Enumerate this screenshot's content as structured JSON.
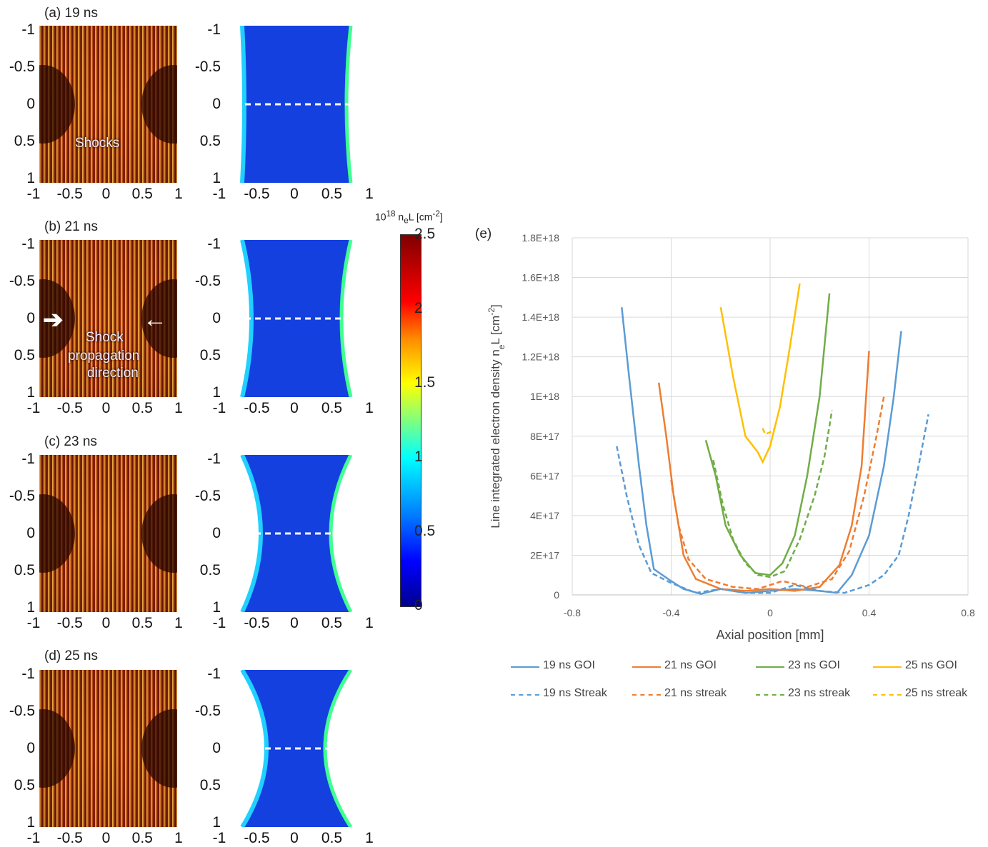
{
  "panels": [
    {
      "label": "(a) 19 ns"
    },
    {
      "label": "(b) 21 ns"
    },
    {
      "label": "(c) 23 ns"
    },
    {
      "label": "(d) 25 ns"
    }
  ],
  "annotations": {
    "shocks": "Shocks",
    "shock_dir_1": "Shock",
    "shock_dir_2": "propagation",
    "shock_dir_3": "direction"
  },
  "image_ticks": {
    "x": [
      "-1",
      "-0.5",
      "0",
      "0.5",
      "1"
    ],
    "y": [
      "-1",
      "-0.5",
      "0",
      "0.5",
      "1"
    ]
  },
  "colorbar": {
    "title": "10<sup>18</sup> n<sub>e</sub>L [cm<sup>-2</sup>]",
    "ticks": [
      "2.5",
      "2",
      "1.5",
      "1",
      "0.5",
      "0"
    ],
    "colors": [
      "#7f0000",
      "#ff0000",
      "#ffff00",
      "#00ffff",
      "#0000ff",
      "#00008f"
    ]
  },
  "panel_e_label": "(e)",
  "chart_data": {
    "type": "line",
    "xlabel": "Axial position [mm]",
    "ylabel": "Line integrated electron density n_eL [cm^-2]",
    "xlim": [
      -0.8,
      0.8
    ],
    "ylim": [
      0,
      1.8e+18
    ],
    "x_ticks": [
      "-0.8",
      "-0.4",
      "0",
      "0.4",
      "0.8"
    ],
    "x_tick_values": [
      -0.8,
      -0.4,
      0,
      0.4,
      0.8
    ],
    "y_ticks": [
      "0",
      "2E+17",
      "4E+17",
      "6E+17",
      "8E+17",
      "1E+18",
      "1.2E+18",
      "1.4E+18",
      "1.6E+18",
      "1.8E+18"
    ],
    "y_tick_values": [
      0,
      2e+17,
      4e+17,
      6e+17,
      8e+17,
      1e+18,
      1.2e+18,
      1.4e+18,
      1.6e+18,
      1.8e+18
    ],
    "grid": true,
    "legend_position": "bottom",
    "series": [
      {
        "name": "19 ns GOI",
        "color": "#5b9bd5",
        "dash": false,
        "points": [
          [
            -0.6,
            1.45e+18
          ],
          [
            -0.57,
            1.1e+18
          ],
          [
            -0.53,
            6.5e+17
          ],
          [
            -0.5,
            3.5e+17
          ],
          [
            -0.47,
            1.3e+17
          ],
          [
            -0.4,
            7e+16
          ],
          [
            -0.35,
            3e+16
          ],
          [
            -0.28,
            5000000000000000.0
          ],
          [
            -0.2,
            3e+16
          ],
          [
            -0.1,
            1e+16
          ],
          [
            0,
            2e+16
          ],
          [
            0.1,
            3e+16
          ],
          [
            0.2,
            2e+16
          ],
          [
            0.27,
            1e+16
          ],
          [
            0.33,
            1e+17
          ],
          [
            0.4,
            3e+17
          ],
          [
            0.46,
            6.5e+17
          ],
          [
            0.5,
            1e+18
          ],
          [
            0.53,
            1.33e+18
          ]
        ]
      },
      {
        "name": "21 ns GOI",
        "color": "#ed7d31",
        "dash": false,
        "points": [
          [
            -0.45,
            1.07e+18
          ],
          [
            -0.42,
            8e+17
          ],
          [
            -0.39,
            5e+17
          ],
          [
            -0.35,
            2e+17
          ],
          [
            -0.3,
            8e+16
          ],
          [
            -0.2,
            3e+16
          ],
          [
            -0.1,
            2e+16
          ],
          [
            0,
            3e+16
          ],
          [
            0.1,
            2e+16
          ],
          [
            0.2,
            4e+16
          ],
          [
            0.28,
            1.5e+17
          ],
          [
            0.33,
            3.5e+17
          ],
          [
            0.37,
            6.5e+17
          ],
          [
            0.4,
            1.23e+18
          ]
        ]
      },
      {
        "name": "23 ns GOI",
        "color": "#70ad47",
        "dash": false,
        "points": [
          [
            -0.26,
            7.8e+17
          ],
          [
            -0.22,
            6e+17
          ],
          [
            -0.18,
            3.5e+17
          ],
          [
            -0.12,
            2e+17
          ],
          [
            -0.06,
            1.1e+17
          ],
          [
            0,
            1e+17
          ],
          [
            0.05,
            1.6e+17
          ],
          [
            0.1,
            3e+17
          ],
          [
            0.15,
            6e+17
          ],
          [
            0.2,
            1e+18
          ],
          [
            0.24,
            1.52e+18
          ]
        ]
      },
      {
        "name": "25 ns GOI",
        "color": "#ffc000",
        "dash": false,
        "points": [
          [
            -0.2,
            1.45e+18
          ],
          [
            -0.15,
            1.1e+18
          ],
          [
            -0.1,
            8e+17
          ],
          [
            -0.05,
            7.2e+17
          ],
          [
            -0.03,
            6.7e+17
          ],
          [
            0,
            7.5e+17
          ],
          [
            0.04,
            9.5e+17
          ],
          [
            0.08,
            1.25e+18
          ],
          [
            0.12,
            1.57e+18
          ]
        ]
      },
      {
        "name": "19 ns Streak",
        "color": "#5b9bd5",
        "dash": true,
        "points": [
          [
            -0.62,
            7.5e+17
          ],
          [
            -0.58,
            5e+17
          ],
          [
            -0.53,
            2.5e+17
          ],
          [
            -0.48,
            1.1e+17
          ],
          [
            -0.4,
            6e+16
          ],
          [
            -0.3,
            1e+16
          ],
          [
            -0.2,
            3e+16
          ],
          [
            -0.1,
            1e+16
          ],
          [
            0,
            1e+16
          ],
          [
            0.1,
            5e+16
          ],
          [
            0.2,
            2e+16
          ],
          [
            0.3,
            1e+16
          ],
          [
            0.4,
            5e+16
          ],
          [
            0.46,
            1e+17
          ],
          [
            0.52,
            2e+17
          ],
          [
            0.56,
            4e+17
          ],
          [
            0.6,
            6.5e+17
          ],
          [
            0.64,
            9.1e+17
          ]
        ]
      },
      {
        "name": "21 ns streak",
        "color": "#ed7d31",
        "dash": true,
        "points": [
          [
            -0.4,
            5.8e+17
          ],
          [
            -0.37,
            3.5e+17
          ],
          [
            -0.33,
            1.8e+17
          ],
          [
            -0.26,
            8e+16
          ],
          [
            -0.15,
            4e+16
          ],
          [
            -0.05,
            3e+16
          ],
          [
            0.05,
            7e+16
          ],
          [
            0.15,
            4e+16
          ],
          [
            0.25,
            8e+16
          ],
          [
            0.32,
            2.2e+17
          ],
          [
            0.38,
            5e+17
          ],
          [
            0.43,
            8e+17
          ],
          [
            0.46,
            1e+18
          ]
        ]
      },
      {
        "name": "23 ns streak",
        "color": "#70ad47",
        "dash": true,
        "points": [
          [
            -0.23,
            6.8e+17
          ],
          [
            -0.19,
            4.5e+17
          ],
          [
            -0.15,
            2.8e+17
          ],
          [
            -0.1,
            1.6e+17
          ],
          [
            -0.05,
            1e+17
          ],
          [
            0,
            9e+16
          ],
          [
            0.06,
            1.2e+17
          ],
          [
            0.12,
            2.8e+17
          ],
          [
            0.18,
            5e+17
          ],
          [
            0.22,
            7e+17
          ],
          [
            0.25,
            9.3e+17
          ]
        ]
      },
      {
        "name": "25 ns streak",
        "color": "#ffc000",
        "dash": true,
        "points": [
          [
            -0.03,
            8.4e+17
          ],
          [
            -0.02,
            8.1e+17
          ],
          [
            0,
            8.2e+17
          ],
          [
            0.02,
            8.4e+17
          ]
        ]
      }
    ]
  }
}
